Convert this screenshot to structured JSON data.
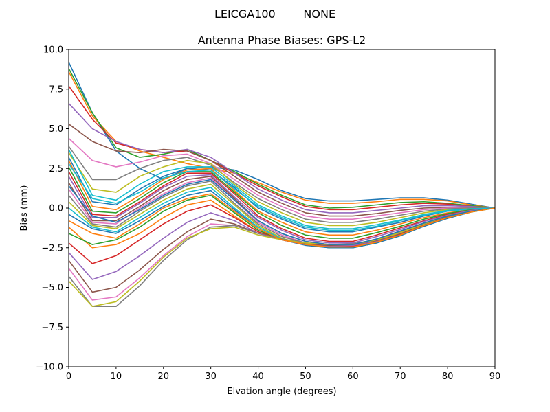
{
  "suptitle": "LEICGA100        NONE",
  "chart_data": {
    "type": "line",
    "title": "Antenna Phase Biases: GPS-L2",
    "xlabel": "Elvation angle (degrees)",
    "ylabel": "Bias (mm)",
    "xlim": [
      0,
      90
    ],
    "ylim": [
      -10,
      10
    ],
    "xticks": [
      0,
      10,
      20,
      30,
      40,
      50,
      60,
      70,
      80,
      90
    ],
    "yticks": [
      -10.0,
      -7.5,
      -5.0,
      -2.5,
      0.0,
      2.5,
      5.0,
      7.5,
      10.0
    ],
    "xtick_labels": [
      "0",
      "10",
      "20",
      "30",
      "40",
      "50",
      "60",
      "70",
      "80",
      "90"
    ],
    "ytick_labels": [
      "−10.0",
      "−7.5",
      "−5.0",
      "−2.5",
      "0.0",
      "2.5",
      "5.0",
      "7.5",
      "10.0"
    ],
    "grid": false,
    "legend": "none",
    "x": [
      0,
      5,
      10,
      15,
      20,
      25,
      30,
      35,
      40,
      45,
      50,
      55,
      60,
      65,
      70,
      75,
      80,
      85,
      90
    ],
    "colors": [
      "#1f77b4",
      "#ff7f0e",
      "#2ca02c",
      "#d62728",
      "#9467bd",
      "#8c564b",
      "#e377c2",
      "#7f7f7f",
      "#bcbd22",
      "#17becf"
    ],
    "series": [
      {
        "values": [
          9.2,
          6.0,
          3.6,
          2.5,
          1.8,
          2.5,
          2.6,
          2.4,
          1.8,
          1.1,
          0.6,
          0.45,
          0.45,
          0.55,
          0.65,
          0.65,
          0.5,
          0.25,
          0.0
        ]
      },
      {
        "values": [
          8.6,
          5.8,
          4.2,
          3.6,
          3.2,
          2.8,
          2.5,
          2.2,
          1.6,
          1.0,
          0.5,
          0.3,
          0.3,
          0.4,
          0.55,
          0.55,
          0.45,
          0.2,
          0.0
        ]
      },
      {
        "values": [
          8.8,
          6.0,
          3.8,
          3.2,
          3.4,
          3.7,
          3.0,
          2.3,
          1.5,
          0.8,
          0.2,
          0.0,
          0.05,
          0.2,
          0.35,
          0.4,
          0.3,
          0.15,
          0.0
        ]
      },
      {
        "values": [
          7.7,
          5.6,
          4.1,
          3.7,
          3.5,
          3.6,
          3.0,
          2.2,
          1.4,
          0.7,
          0.1,
          -0.1,
          -0.1,
          0.05,
          0.2,
          0.3,
          0.25,
          0.1,
          0.0
        ]
      },
      {
        "values": [
          6.6,
          5.0,
          4.2,
          3.7,
          3.5,
          3.7,
          3.2,
          2.2,
          1.2,
          0.5,
          -0.1,
          -0.3,
          -0.3,
          -0.15,
          0.0,
          0.15,
          0.15,
          0.1,
          0.0
        ]
      },
      {
        "values": [
          5.3,
          4.2,
          3.6,
          3.5,
          3.7,
          3.6,
          3.0,
          2.0,
          1.0,
          0.3,
          -0.3,
          -0.5,
          -0.5,
          -0.35,
          -0.15,
          0.0,
          0.05,
          0.05,
          0.0
        ]
      },
      {
        "values": [
          4.4,
          3.0,
          2.6,
          2.9,
          3.3,
          3.4,
          2.8,
          1.8,
          0.8,
          0.1,
          -0.5,
          -0.7,
          -0.7,
          -0.5,
          -0.3,
          -0.1,
          0.0,
          0.0,
          0.0
        ]
      },
      {
        "values": [
          3.9,
          1.8,
          1.8,
          2.5,
          3.0,
          3.2,
          2.7,
          1.6,
          0.6,
          -0.1,
          -0.7,
          -0.9,
          -0.9,
          -0.7,
          -0.45,
          -0.2,
          -0.05,
          0.0,
          0.0
        ]
      },
      {
        "values": [
          3.5,
          1.2,
          1.0,
          2.0,
          2.6,
          3.0,
          2.8,
          1.5,
          0.4,
          -0.3,
          -0.9,
          -1.1,
          -1.1,
          -0.9,
          -0.6,
          -0.3,
          -0.1,
          -0.05,
          0.0
        ]
      },
      {
        "values": [
          3.7,
          0.8,
          0.5,
          1.5,
          2.3,
          2.6,
          2.6,
          1.4,
          0.2,
          -0.5,
          -1.1,
          -1.3,
          -1.3,
          -1.05,
          -0.75,
          -0.4,
          -0.15,
          -0.05,
          0.0
        ]
      },
      {
        "values": [
          3.2,
          0.4,
          0.2,
          1.2,
          2.0,
          2.5,
          2.4,
          1.3,
          0.0,
          -0.7,
          -1.3,
          -1.5,
          -1.5,
          -1.2,
          -0.9,
          -0.5,
          -0.2,
          -0.05,
          0.0
        ]
      },
      {
        "values": [
          3.0,
          0.1,
          -0.1,
          0.8,
          1.8,
          2.4,
          2.5,
          1.1,
          -0.2,
          -0.9,
          -1.5,
          -1.7,
          -1.7,
          -1.4,
          -1.0,
          -0.6,
          -0.3,
          -0.1,
          0.0
        ]
      },
      {
        "values": [
          2.6,
          -0.2,
          -0.3,
          0.6,
          1.6,
          2.3,
          2.3,
          1.0,
          -0.3,
          -1.1,
          -1.7,
          -1.9,
          -1.9,
          -1.55,
          -1.15,
          -0.7,
          -0.35,
          -0.1,
          0.0
        ]
      },
      {
        "values": [
          2.3,
          -0.4,
          -0.5,
          0.4,
          1.4,
          2.2,
          2.2,
          0.9,
          -0.5,
          -1.3,
          -1.9,
          -2.1,
          -2.1,
          -1.7,
          -1.25,
          -0.8,
          -0.4,
          -0.15,
          0.0
        ]
      },
      {
        "values": [
          2.0,
          -0.6,
          -0.6,
          0.3,
          1.3,
          2.0,
          2.1,
          0.7,
          -0.6,
          -1.4,
          -2.0,
          -2.2,
          -2.2,
          -1.8,
          -1.35,
          -0.85,
          -0.45,
          -0.15,
          0.0
        ]
      },
      {
        "values": [
          1.6,
          -0.8,
          -0.8,
          0.1,
          1.1,
          1.8,
          2.0,
          0.6,
          -0.8,
          -1.6,
          -2.1,
          -2.3,
          -2.3,
          -1.95,
          -1.45,
          -0.95,
          -0.5,
          -0.2,
          0.0
        ]
      },
      {
        "values": [
          1.2,
          -0.9,
          -1.0,
          0.0,
          0.9,
          1.6,
          1.9,
          0.5,
          -0.9,
          -1.7,
          -2.2,
          -2.4,
          -2.4,
          -2.05,
          -1.55,
          -1.0,
          -0.55,
          -0.2,
          0.0
        ]
      },
      {
        "values": [
          0.8,
          -1.0,
          -1.2,
          -0.2,
          0.7,
          1.4,
          1.7,
          0.3,
          -1.0,
          -1.8,
          -2.2,
          -2.45,
          -2.45,
          -2.1,
          -1.6,
          -1.05,
          -0.6,
          -0.25,
          0.0
        ]
      },
      {
        "values": [
          0.4,
          -1.1,
          -1.3,
          -0.4,
          0.5,
          1.2,
          1.5,
          0.2,
          -1.1,
          -1.9,
          -2.3,
          -2.5,
          -2.5,
          -2.2,
          -1.7,
          -1.1,
          -0.6,
          -0.25,
          0.0
        ]
      },
      {
        "values": [
          0.0,
          -1.2,
          -1.5,
          -0.6,
          0.3,
          1.0,
          1.3,
          0.0,
          -1.2,
          -1.95,
          -2.3,
          -2.5,
          -2.5,
          -2.2,
          -1.7,
          -1.15,
          -0.65,
          -0.25,
          0.0
        ]
      },
      {
        "values": [
          -0.4,
          -1.3,
          -1.6,
          -0.8,
          0.1,
          0.8,
          1.1,
          -0.1,
          -1.3,
          -2.0,
          -2.35,
          -2.5,
          -2.5,
          -2.2,
          -1.75,
          -1.15,
          -0.65,
          -0.25,
          0.0
        ]
      },
      {
        "values": [
          -1.2,
          -2.5,
          -2.3,
          -1.6,
          -0.6,
          0.2,
          0.5,
          -0.5,
          -1.5,
          -2.0,
          -2.3,
          -2.4,
          -2.4,
          -2.15,
          -1.7,
          -1.1,
          -0.6,
          -0.25,
          0.0
        ]
      },
      {
        "values": [
          -1.6,
          -2.3,
          -2.0,
          -1.2,
          -0.2,
          0.5,
          0.8,
          -0.3,
          -1.4,
          -2.0,
          -2.3,
          -2.45,
          -2.45,
          -2.15,
          -1.7,
          -1.1,
          -0.6,
          -0.25,
          0.0
        ]
      },
      {
        "values": [
          -2.2,
          -3.5,
          -3.0,
          -2.0,
          -1.0,
          -0.2,
          0.2,
          -0.6,
          -1.5,
          -2.0,
          -2.3,
          -2.4,
          -2.4,
          -2.1,
          -1.65,
          -1.1,
          -0.6,
          -0.2,
          0.0
        ]
      },
      {
        "values": [
          -2.8,
          -4.5,
          -4.0,
          -3.0,
          -1.9,
          -0.9,
          -0.3,
          -0.8,
          -1.6,
          -2.0,
          -2.3,
          -2.4,
          -2.35,
          -2.1,
          -1.6,
          -1.05,
          -0.55,
          -0.2,
          0.0
        ]
      },
      {
        "values": [
          -3.3,
          -5.3,
          -5.0,
          -3.9,
          -2.6,
          -1.5,
          -0.7,
          -1.0,
          -1.6,
          -2.0,
          -2.25,
          -2.35,
          -2.3,
          -2.05,
          -1.6,
          -1.05,
          -0.55,
          -0.2,
          0.0
        ]
      },
      {
        "values": [
          -3.8,
          -5.8,
          -5.6,
          -4.4,
          -3.0,
          -1.8,
          -1.0,
          -1.1,
          -1.6,
          -2.0,
          -2.2,
          -2.3,
          -2.3,
          -2.0,
          -1.55,
          -1.0,
          -0.5,
          -0.2,
          0.0
        ]
      },
      {
        "values": [
          -4.3,
          -6.2,
          -6.2,
          -4.9,
          -3.3,
          -2.0,
          -1.2,
          -1.1,
          -1.6,
          -1.95,
          -2.2,
          -2.3,
          -2.25,
          -2.0,
          -1.5,
          -1.0,
          -0.5,
          -0.2,
          0.0
        ]
      },
      {
        "values": [
          -4.6,
          -6.2,
          -5.9,
          -4.6,
          -3.1,
          -1.9,
          -1.3,
          -1.2,
          -1.7,
          -2.0,
          -2.2,
          -2.3,
          -2.3,
          -2.0,
          -1.55,
          -1.0,
          -0.5,
          -0.2,
          0.0
        ]
      },
      {
        "values": [
          2.8,
          0.6,
          0.3,
          1.0,
          1.9,
          2.3,
          2.4,
          1.2,
          0.1,
          -0.6,
          -1.2,
          -1.4,
          -1.4,
          -1.15,
          -0.8,
          -0.45,
          -0.2,
          -0.05,
          0.0
        ]
      },
      {
        "values": [
          1.4,
          -0.5,
          -0.9,
          -0.1,
          0.8,
          1.5,
          1.8,
          0.5,
          -0.8,
          -1.6,
          -2.1,
          -2.3,
          -2.3,
          -1.95,
          -1.45,
          -0.95,
          -0.5,
          -0.2,
          0.0
        ]
      },
      {
        "values": [
          -0.8,
          -1.6,
          -1.9,
          -1.0,
          0.0,
          0.6,
          0.9,
          -0.2,
          -1.3,
          -2.0,
          -2.3,
          -2.45,
          -2.45,
          -2.15,
          -1.7,
          -1.1,
          -0.6,
          -0.25,
          0.0
        ]
      }
    ]
  }
}
